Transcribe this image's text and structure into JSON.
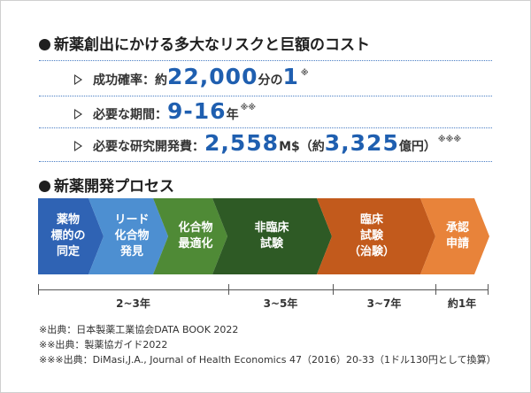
{
  "cost": {
    "heading": "新薬創出にかける多大なリスクと巨額のコスト",
    "rows": [
      {
        "label": "成功確率：約",
        "value": "22,000",
        "unit": "分の",
        "value2": "1",
        "unit2": "",
        "value3": "",
        "unit3": "",
        "mark": "※"
      },
      {
        "label": "必要な期間：",
        "value": "9-16",
        "unit": "年",
        "value2": "",
        "unit2": "",
        "value3": "",
        "unit3": "",
        "mark": "※※"
      },
      {
        "label": "必要な研究開発費：",
        "value": "2,558",
        "unit": "M$（約",
        "value2": "3,325",
        "unit2": "億円）",
        "value3": "",
        "unit3": "",
        "mark": "※※※"
      }
    ]
  },
  "process": {
    "heading": "新薬開発プロセス",
    "steps": [
      {
        "label": "薬物\n標的の\n同定",
        "color": "#2f63b4"
      },
      {
        "label": "リード\n化合物\n発見",
        "color": "#4d8fd1"
      },
      {
        "label": "化合物\n最適化",
        "color": "#4f8a36"
      },
      {
        "label": "非臨床\n試験",
        "color": "#2e5a25"
      },
      {
        "label": "臨床\n試験\n（治験）",
        "color": "#c25a1c"
      },
      {
        "label": "承認\n申請",
        "color": "#e8833a"
      }
    ],
    "periods": [
      "2~3年",
      "3~5年",
      "3~7年",
      "約1年"
    ]
  },
  "notes": [
    "※出典：日本製薬工業協会DATA BOOK 2022",
    "※※出典：製薬協ガイド2022",
    "※※※出典：DiMasi,J.A., Journal of Health Economics 47（2016）20-33（1ドル130円として換算）"
  ]
}
